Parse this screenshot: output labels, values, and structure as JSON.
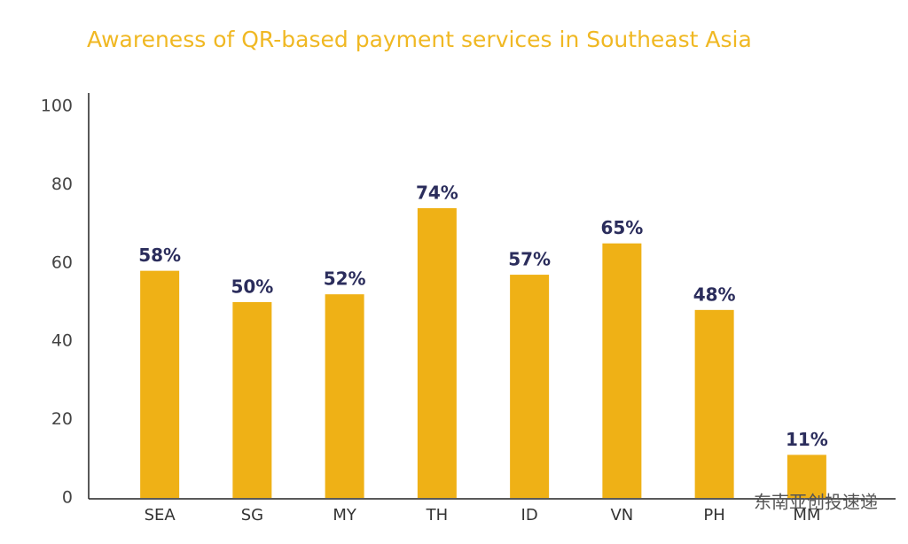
{
  "chart_data": {
    "type": "bar",
    "title": "Awareness of QR-based payment services in Southeast Asia",
    "categories": [
      "SEA",
      "SG",
      "MY",
      "TH",
      "ID",
      "VN",
      "PH",
      "MM"
    ],
    "values": [
      58,
      50,
      52,
      74,
      57,
      65,
      48,
      11
    ],
    "value_labels": [
      "58%",
      "50%",
      "52%",
      "74%",
      "57%",
      "65%",
      "48%",
      "11%"
    ],
    "color": "#efb116",
    "ylim": [
      0,
      100
    ],
    "yticks": [
      0,
      20,
      40,
      60,
      80,
      100
    ],
    "grid": false,
    "watermark": "东南亚创投速递"
  }
}
